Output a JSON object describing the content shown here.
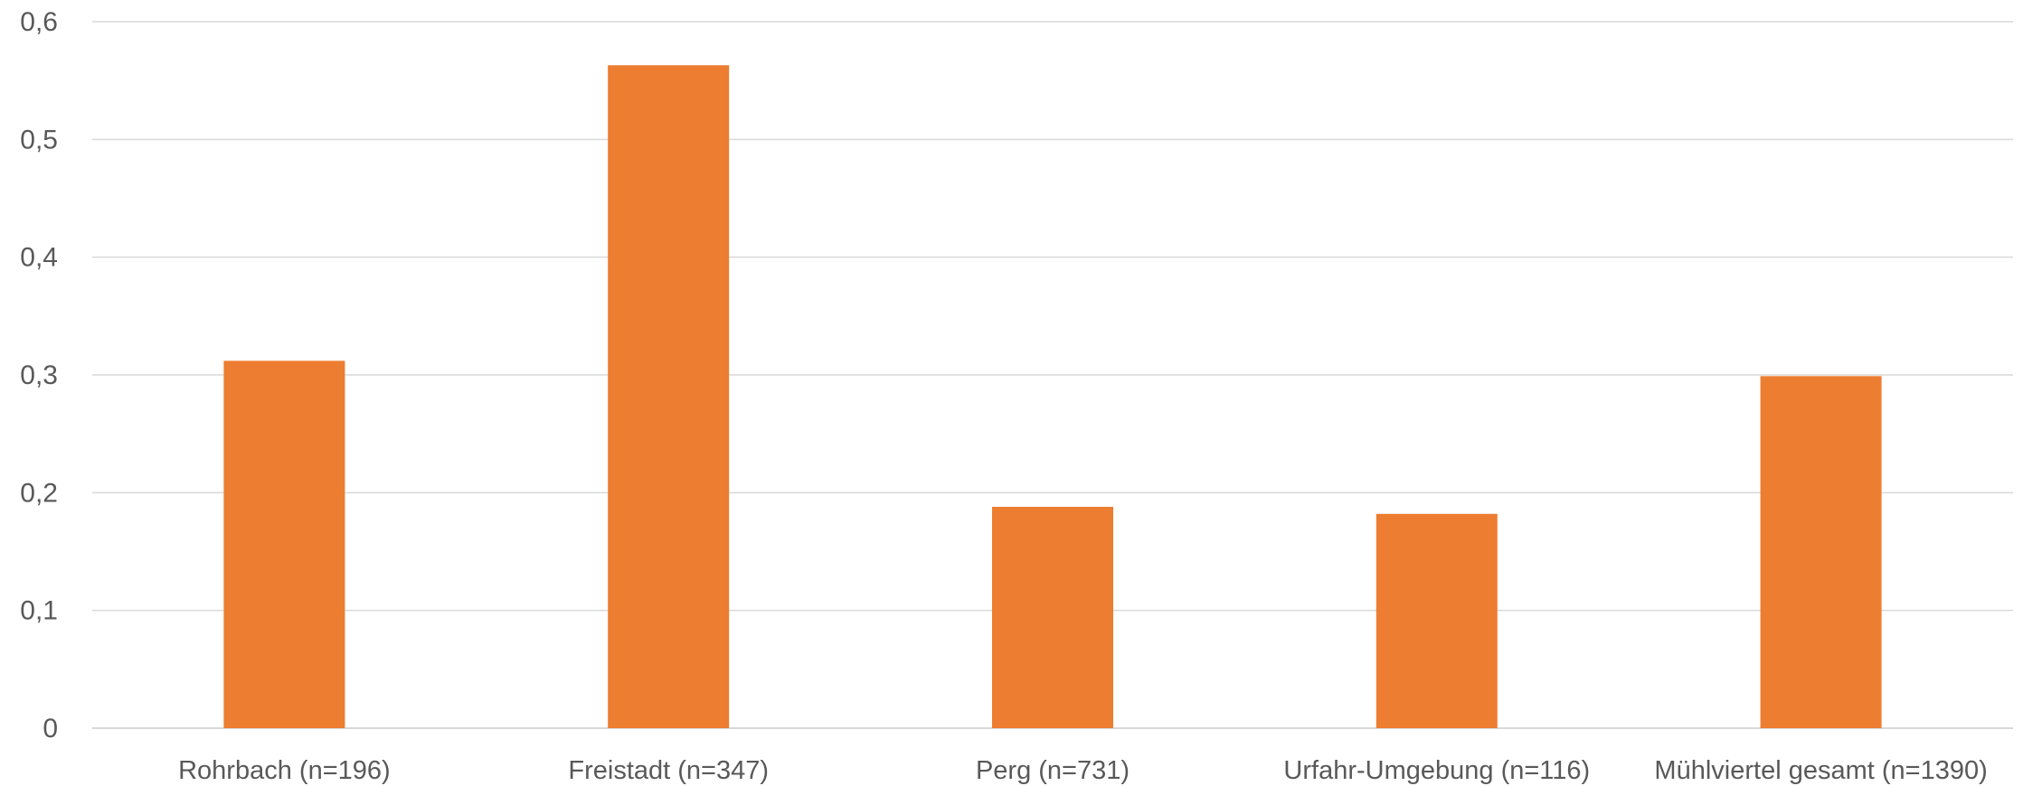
{
  "chart_data": {
    "type": "bar",
    "categories": [
      "Rohrbach (n=196)",
      "Freistadt (n=347)",
      "Perg (n=731)",
      "Urfahr-Umgebung (n=116)",
      "Mühlviertel gesamt (n=1390)"
    ],
    "values": [
      0.312,
      0.563,
      0.188,
      0.182,
      0.299
    ],
    "yticks": [
      "0",
      "0,1",
      "0,2",
      "0,3",
      "0,4",
      "0,5",
      "0,6"
    ],
    "ylim": [
      0,
      0.6
    ],
    "grid": true,
    "bar_color": "#ED7D31",
    "grid_color": "#D9D9D9",
    "title": "",
    "xlabel": "",
    "ylabel": ""
  }
}
